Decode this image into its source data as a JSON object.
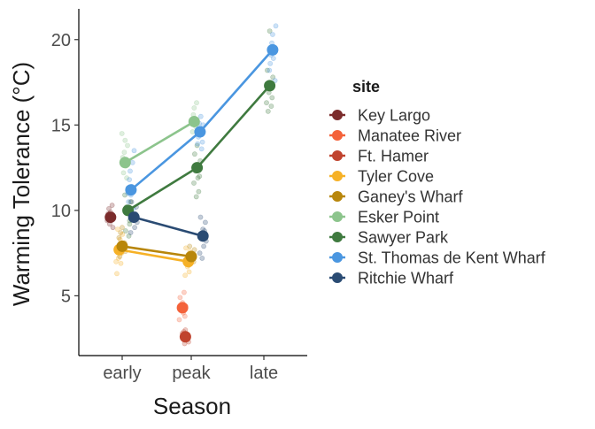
{
  "chart_data": {
    "type": "line",
    "title": "",
    "xlabel": "Season",
    "ylabel": "Warming Tolerance (°C)",
    "categories": [
      "early",
      "peak",
      "late"
    ],
    "y_ticks": [
      5,
      10,
      15,
      20
    ],
    "ylim": [
      1.5,
      21.8
    ],
    "grid": false,
    "legend": {
      "title": "site",
      "placement": "right"
    },
    "series": [
      {
        "name": "Key Largo",
        "color": "#7b2c2c",
        "values": [
          9.6,
          null,
          null
        ],
        "raw": [
          [
            9.4,
            9.8,
            10.1,
            9.2,
            9.9,
            9.5,
            10.3,
            9.0
          ]
        ]
      },
      {
        "name": "Manatee River",
        "color": "#f4623a",
        "values": [
          null,
          4.3,
          null
        ],
        "raw": [
          [],
          [
            4.6,
            4.0,
            5.2,
            3.8,
            4.4,
            3.6,
            4.9,
            4.2
          ]
        ]
      },
      {
        "name": "Ft. Hamer",
        "color": "#c0432e",
        "values": [
          null,
          2.6,
          null
        ],
        "raw": [
          [],
          [
            2.3,
            2.8,
            2.5,
            2.9,
            2.2,
            3.0,
            2.6
          ]
        ]
      },
      {
        "name": "Tyler Cove",
        "color": "#f6b126",
        "values": [
          7.7,
          7.0,
          null
        ],
        "raw": [
          [
            7.2,
            7.9,
            8.3,
            6.9,
            7.5,
            8.6,
            7.0,
            6.3,
            8.9
          ],
          [
            6.7,
            7.2,
            6.4,
            7.6,
            6.9,
            7.4,
            6.2,
            7.8
          ]
        ]
      },
      {
        "name": "Ganey's Wharf",
        "color": "#b8860b",
        "values": [
          7.9,
          7.3,
          null
        ],
        "raw": [
          [
            8.1,
            7.6,
            8.4,
            7.3,
            8.7,
            7.8,
            9.0
          ],
          [
            7.0,
            7.7,
            7.4,
            6.8,
            7.9,
            7.1
          ]
        ]
      },
      {
        "name": "Esker Point",
        "color": "#8cc48c",
        "values": [
          12.8,
          15.2,
          null
        ],
        "raw": [
          [
            12.2,
            13.4,
            14.1,
            12.6,
            11.9,
            13.8,
            12.9,
            14.5,
            13.1
          ],
          [
            14.6,
            15.6,
            16.0,
            15.3,
            14.9,
            16.3,
            15.1
          ]
        ]
      },
      {
        "name": "Sawyer Park",
        "color": "#3f7a3f",
        "values": [
          10.0,
          12.5,
          17.3
        ],
        "raw": [
          [
            9.2,
            10.5,
            9.6,
            10.9,
            8.8,
            10.2,
            9.9,
            11.3,
            8.5,
            9.4
          ],
          [
            11.1,
            12.0,
            12.9,
            11.6,
            13.3,
            12.3,
            10.8,
            13.8,
            11.9
          ],
          [
            16.1,
            16.6,
            17.8,
            16.3,
            18.2,
            15.8,
            16.9,
            20.5
          ]
        ]
      },
      {
        "name": "St. Thomas de Kent Wharf",
        "color": "#4a96e0",
        "values": [
          11.2,
          14.6,
          19.4
        ],
        "raw": [
          [
            10.5,
            11.8,
            12.3,
            10.9,
            11.4,
            12.8,
            10.1,
            13.5,
            11.0
          ],
          [
            13.9,
            14.3,
            15.1,
            14.8,
            15.5,
            13.6,
            14.0,
            15.0
          ],
          [
            18.6,
            19.1,
            19.8,
            20.3,
            18.9,
            19.5,
            17.6,
            20.8,
            18.2,
            17.3
          ]
        ]
      },
      {
        "name": "Ritchie Wharf",
        "color": "#2a4b73",
        "values": [
          9.6,
          8.5,
          null
        ],
        "raw": [
          [
            9.0,
            9.8,
            10.2,
            9.3,
            8.7,
            10.5,
            9.5
          ],
          [
            7.9,
            8.8,
            9.3,
            8.2,
            7.5,
            9.6,
            8.4,
            7.2,
            8.9
          ]
        ]
      }
    ]
  }
}
